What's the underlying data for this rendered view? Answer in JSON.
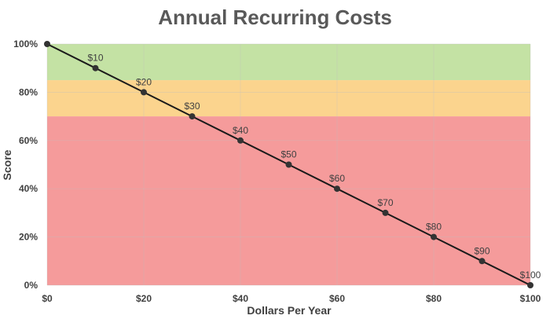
{
  "chart_data": {
    "type": "line",
    "title": "Annual Recurring Costs",
    "xlabel": "Dollars Per Year",
    "ylabel": "Score",
    "xlim": [
      0,
      100
    ],
    "ylim": [
      0,
      100
    ],
    "x_ticks": [
      0,
      20,
      40,
      60,
      80,
      100
    ],
    "x_tick_labels": [
      "$0",
      "$20",
      "$40",
      "$60",
      "$80",
      "$100"
    ],
    "y_ticks": [
      0,
      20,
      40,
      60,
      80,
      100
    ],
    "y_tick_labels": [
      "0%",
      "20%",
      "40%",
      "60%",
      "80%",
      "100%"
    ],
    "grid": true,
    "legend": "none",
    "bands": [
      {
        "from": 85,
        "to": 100,
        "color": "#c4e2a4"
      },
      {
        "from": 70,
        "to": 85,
        "color": "#fbd48e"
      },
      {
        "from": 0,
        "to": 70,
        "color": "#f59b9b"
      }
    ],
    "series": [
      {
        "color": "#1a1a1a",
        "x": [
          0,
          10,
          20,
          30,
          40,
          50,
          60,
          70,
          80,
          90,
          100
        ],
        "y": [
          100,
          90,
          80,
          70,
          60,
          50,
          40,
          30,
          20,
          10,
          0
        ],
        "data_labels": [
          "",
          "$10",
          "$20",
          "$30",
          "$40",
          "$50",
          "$60",
          "$70",
          "$80",
          "$90",
          "$100"
        ]
      }
    ]
  }
}
